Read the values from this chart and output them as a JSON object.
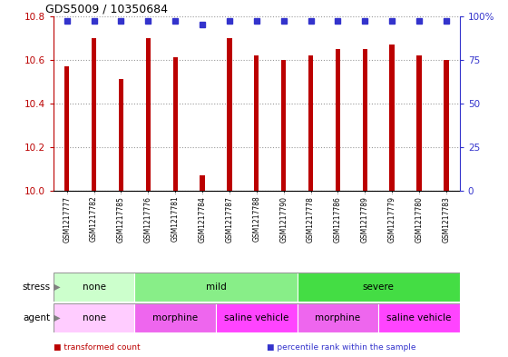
{
  "title": "GDS5009 / 10350684",
  "samples": [
    "GSM1217777",
    "GSM1217782",
    "GSM1217785",
    "GSM1217776",
    "GSM1217781",
    "GSM1217784",
    "GSM1217787",
    "GSM1217788",
    "GSM1217790",
    "GSM1217778",
    "GSM1217786",
    "GSM1217789",
    "GSM1217779",
    "GSM1217780",
    "GSM1217783"
  ],
  "bar_values": [
    10.57,
    10.7,
    10.51,
    10.7,
    10.61,
    10.07,
    10.7,
    10.62,
    10.6,
    10.62,
    10.65,
    10.65,
    10.67,
    10.62,
    10.6
  ],
  "percentile_values": [
    97,
    97,
    97,
    97,
    97,
    95,
    97,
    97,
    97,
    97,
    97,
    97,
    97,
    97,
    97
  ],
  "bar_color": "#BB0000",
  "percentile_color": "#3333CC",
  "ylim_left": [
    10.0,
    10.8
  ],
  "ylim_right": [
    0,
    100
  ],
  "yticks_left": [
    10.0,
    10.2,
    10.4,
    10.6,
    10.8
  ],
  "yticks_right": [
    0,
    25,
    50,
    75,
    100
  ],
  "ytick_right_labels": [
    "0",
    "25",
    "50",
    "75",
    "100%"
  ],
  "stress_groups": [
    {
      "label": "none",
      "start": 0,
      "end": 3,
      "color": "#CCFFCC"
    },
    {
      "label": "mild",
      "start": 3,
      "end": 9,
      "color": "#88EE88"
    },
    {
      "label": "severe",
      "start": 9,
      "end": 15,
      "color": "#44DD44"
    }
  ],
  "agent_groups": [
    {
      "label": "none",
      "start": 0,
      "end": 3,
      "color": "#FFCCFF"
    },
    {
      "label": "morphine",
      "start": 3,
      "end": 6,
      "color": "#EE66EE"
    },
    {
      "label": "saline vehicle",
      "start": 6,
      "end": 9,
      "color": "#FF44FF"
    },
    {
      "label": "morphine",
      "start": 9,
      "end": 12,
      "color": "#EE66EE"
    },
    {
      "label": "saline vehicle",
      "start": 12,
      "end": 15,
      "color": "#FF44FF"
    }
  ],
  "legend_items": [
    {
      "label": "transformed count",
      "color": "#BB0000"
    },
    {
      "label": "percentile rank within the sample",
      "color": "#3333CC"
    }
  ],
  "label_bg_color": "#CCCCCC",
  "background_color": "#FFFFFF",
  "grid_color": "#999999"
}
